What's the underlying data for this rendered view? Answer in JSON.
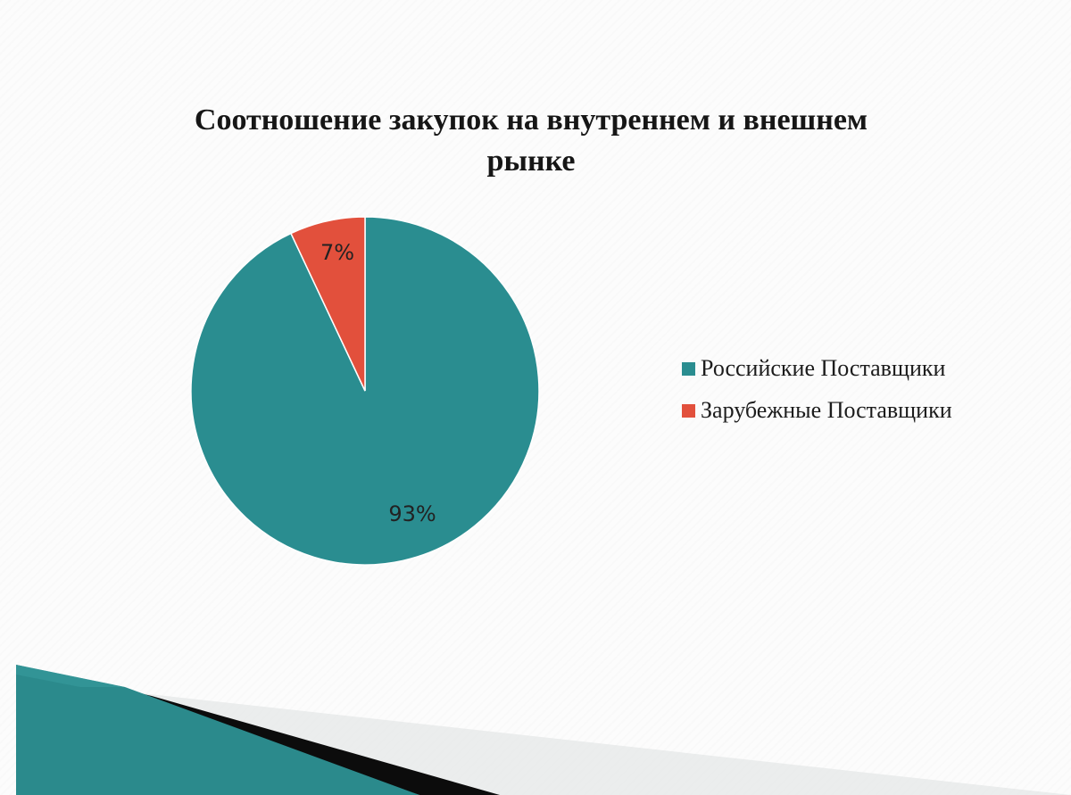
{
  "slide": {
    "title": "Соотношение закупок на внутреннем и внешнем рынке"
  },
  "chart_data": {
    "type": "pie",
    "title": "Соотношение закупок на внутреннем и внешнем рынке",
    "legend_position": "right",
    "slices": [
      {
        "label": "Российские Поставщики",
        "value": 93,
        "display": "93%",
        "color": "#2a8d90"
      },
      {
        "label": "Зарубежные Поставщики",
        "value": 7,
        "display": "7%",
        "color": "#e2503c"
      }
    ]
  },
  "decor": {
    "colors": {
      "teal": "#2b8a8c",
      "black": "#0c0c0c",
      "grey": "#d9dcdc"
    }
  }
}
